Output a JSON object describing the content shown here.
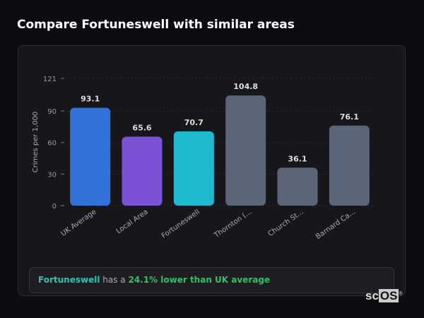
{
  "title": "Compare Fortuneswell with similar areas",
  "chart_data": {
    "type": "bar",
    "title": "",
    "xlabel": "",
    "ylabel": "Crimes per 1,000",
    "ylim": [
      0,
      121
    ],
    "yticks": [
      0,
      30,
      60,
      90,
      121
    ],
    "grid": true,
    "categories": [
      "UK Average",
      "Local Area",
      "Fortuneswell",
      "Thornton (...",
      "Church St...",
      "Barnard Ca..."
    ],
    "values": [
      93.1,
      65.6,
      70.7,
      104.8,
      36.1,
      76.1
    ],
    "value_labels": [
      "93.1",
      "65.6",
      "70.7",
      "104.8",
      "36.1",
      "76.1"
    ],
    "colors": [
      "#3373d9",
      "#7b52d6",
      "#20b8cf",
      "#5a6577",
      "#5a6577",
      "#5a6577"
    ]
  },
  "callout": {
    "area": "Fortuneswell",
    "middle": " has a ",
    "stat": "24.1% lower than UK average"
  },
  "logo": {
    "text": "scOS"
  }
}
